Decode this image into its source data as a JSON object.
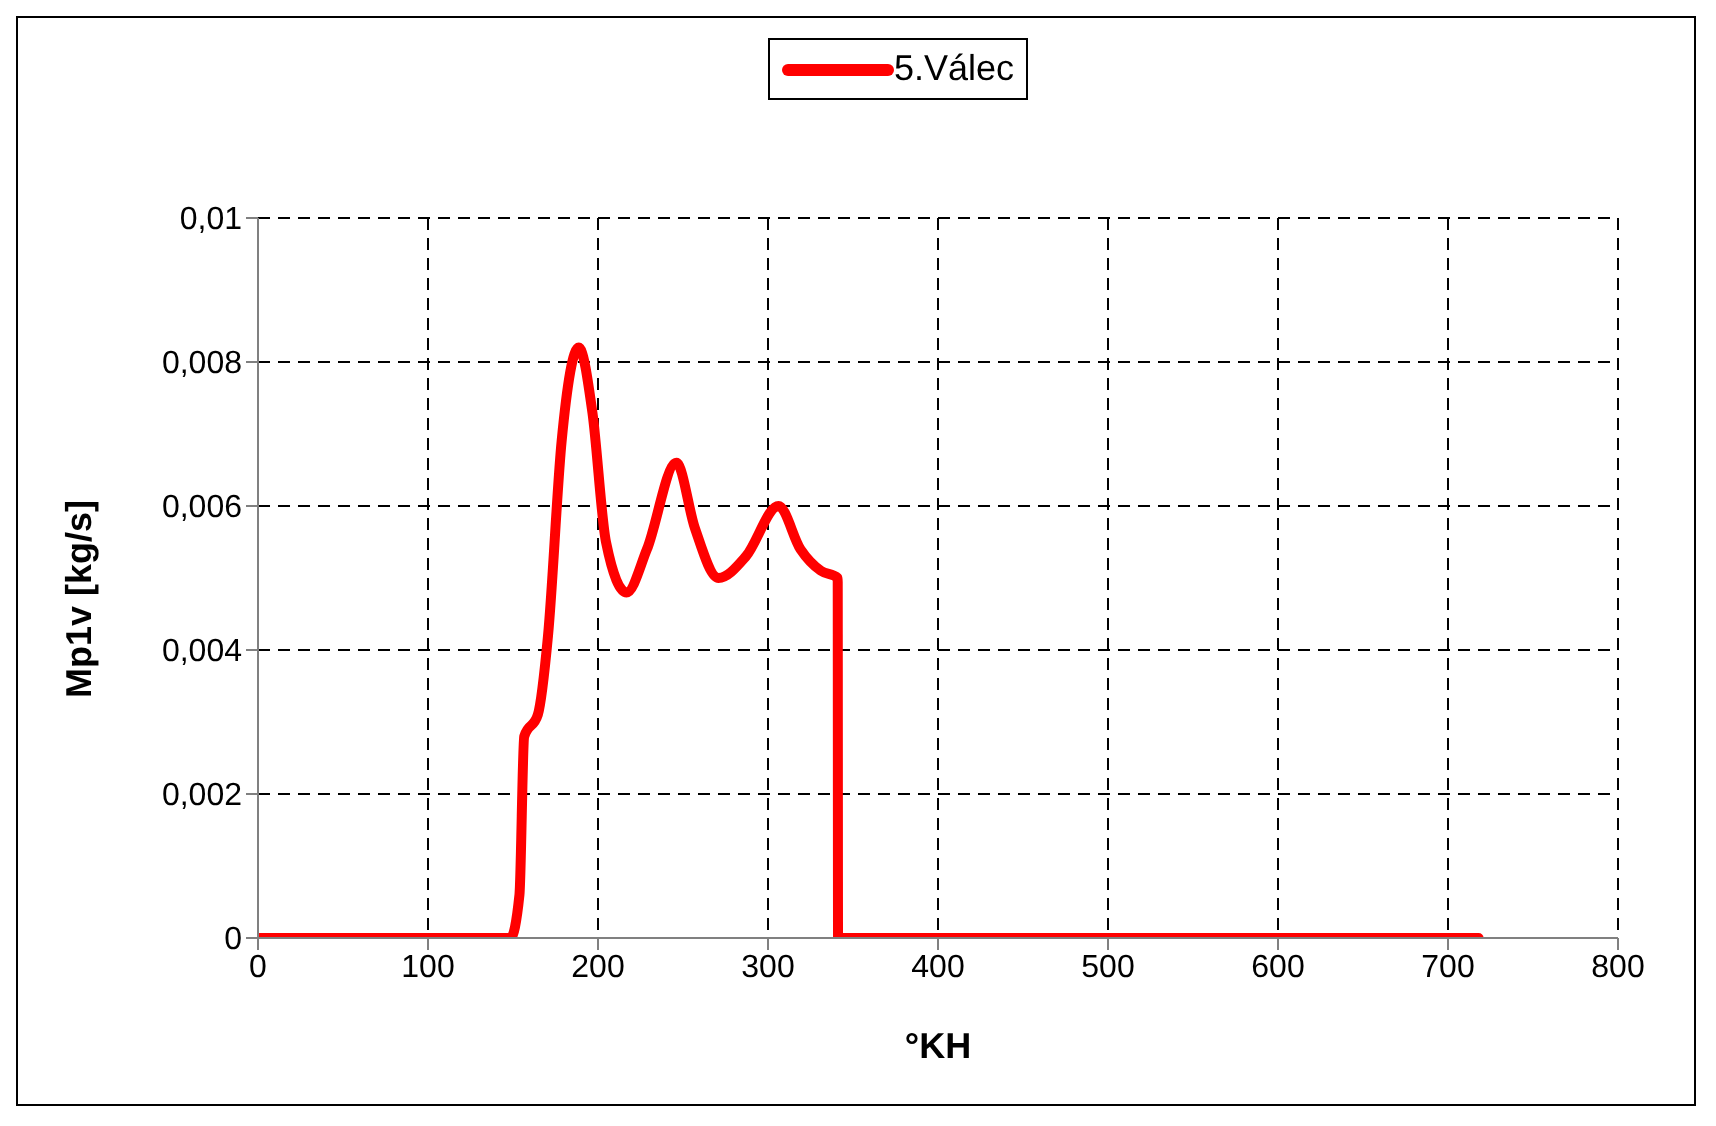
{
  "chart_data": {
    "type": "line",
    "xlabel": "°KH",
    "ylabel": "Mp1v [kg/s]",
    "xlim": [
      0,
      800
    ],
    "xticks": [
      0,
      100,
      200,
      300,
      400,
      500,
      600,
      700,
      800
    ],
    "ylim": [
      0,
      0.01
    ],
    "yticks": [
      {
        "value": 0,
        "label": "0"
      },
      {
        "value": 0.002,
        "label": "0,002"
      },
      {
        "value": 0.004,
        "label": "0,004"
      },
      {
        "value": 0.006,
        "label": "0,006"
      },
      {
        "value": 0.008,
        "label": "0,008"
      },
      {
        "value": 0.01,
        "label": "0,01"
      }
    ],
    "grid": true,
    "legend": "top",
    "marker": "none",
    "line_style": "solid",
    "x": [
      0,
      148.5,
      153.8,
      156.6,
      164.6,
      170.6,
      178.6,
      188.7,
      196.7,
      204.7,
      216.8,
      228.8,
      246.1,
      256.9,
      270.9,
      287,
      306.2,
      319.1,
      331.1,
      341,
      341.2,
      718
    ],
    "series": [
      {
        "name": "5.Válec",
        "color": "#ff0000",
        "values": [
          0,
          0,
          0.0006,
          0.0028,
          0.0031,
          0.0042,
          0.0069,
          0.0082,
          0.0073,
          0.0055,
          0.0048,
          0.0054,
          0.0066,
          0.0057,
          0.005,
          0.0053,
          0.006,
          0.0054,
          0.0051,
          0.005,
          0,
          0
        ]
      }
    ]
  }
}
